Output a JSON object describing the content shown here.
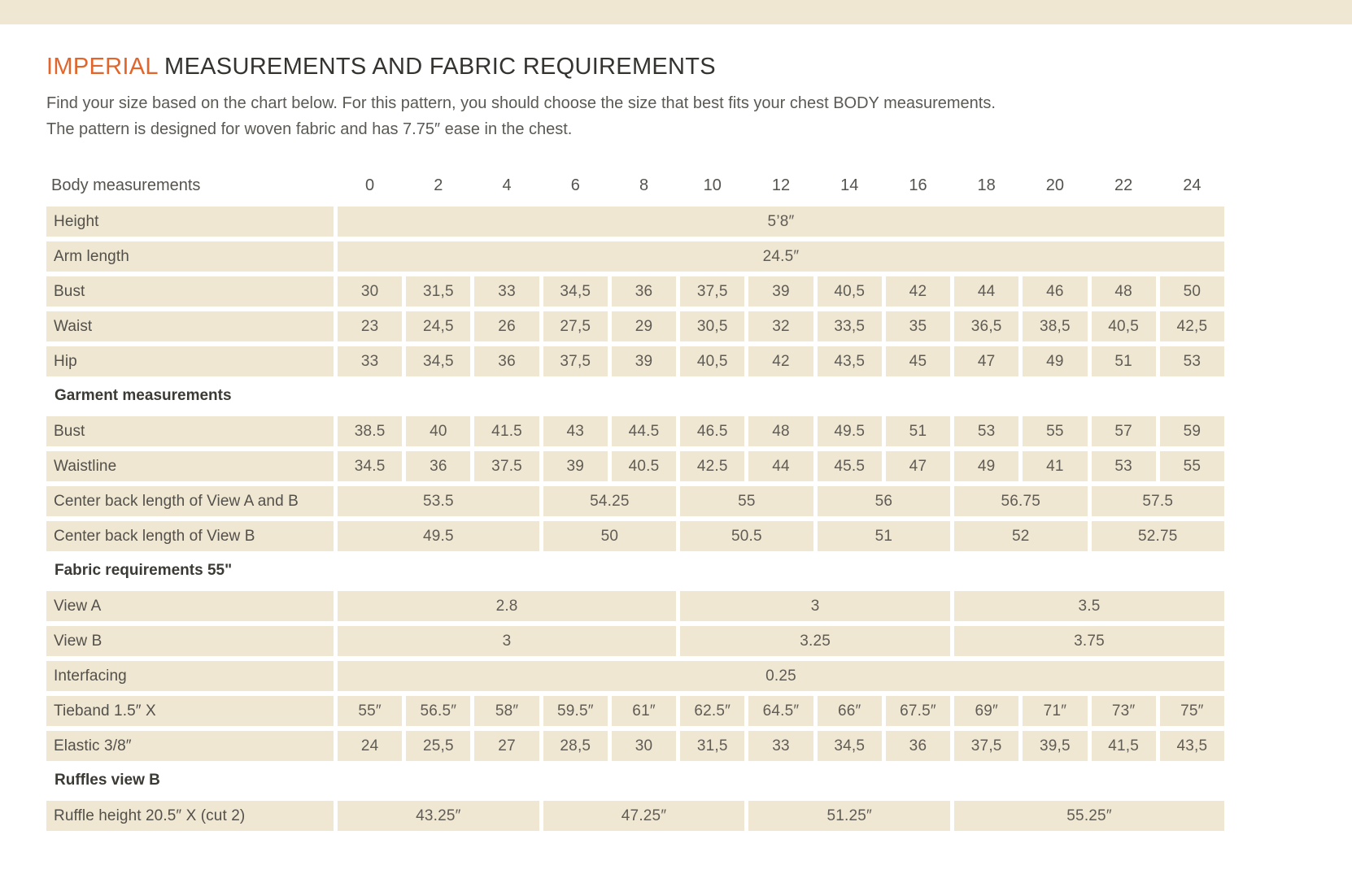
{
  "title": {
    "highlight": "IMPERIAL",
    "rest": " MEASUREMENTS AND FABRIC REQUIREMENTS"
  },
  "intro": {
    "line1": "Find your size based on the chart below. For this pattern, you should choose the size that best fits your chest BODY measurements.",
    "line2": "The pattern is designed for woven fabric and has 7.75″ ease in the chest."
  },
  "colors": {
    "accent_orange": "#e2662b",
    "cell_beige": "#f0e7d3",
    "label_text": "#52504a",
    "value_text": "#5f5c55"
  },
  "table": {
    "header_label": "Body measurements",
    "sizes": [
      "0",
      "2",
      "4",
      "6",
      "8",
      "10",
      "12",
      "14",
      "16",
      "18",
      "20",
      "22",
      "24"
    ],
    "rows": [
      {
        "type": "data",
        "label": "Height",
        "cells": [
          {
            "text": "5’8″",
            "span": 13
          }
        ]
      },
      {
        "type": "data",
        "label": "Arm length",
        "cells": [
          {
            "text": "24.5″",
            "span": 13
          }
        ]
      },
      {
        "type": "data",
        "label": "Bust",
        "cells": [
          {
            "text": "30",
            "span": 1
          },
          {
            "text": "31,5",
            "span": 1
          },
          {
            "text": "33",
            "span": 1
          },
          {
            "text": "34,5",
            "span": 1
          },
          {
            "text": "36",
            "span": 1
          },
          {
            "text": "37,5",
            "span": 1
          },
          {
            "text": "39",
            "span": 1
          },
          {
            "text": "40,5",
            "span": 1
          },
          {
            "text": "42",
            "span": 1
          },
          {
            "text": "44",
            "span": 1
          },
          {
            "text": "46",
            "span": 1
          },
          {
            "text": "48",
            "span": 1
          },
          {
            "text": "50",
            "span": 1
          }
        ]
      },
      {
        "type": "data",
        "label": "Waist",
        "cells": [
          {
            "text": "23",
            "span": 1
          },
          {
            "text": "24,5",
            "span": 1
          },
          {
            "text": "26",
            "span": 1
          },
          {
            "text": "27,5",
            "span": 1
          },
          {
            "text": "29",
            "span": 1
          },
          {
            "text": "30,5",
            "span": 1
          },
          {
            "text": "32",
            "span": 1
          },
          {
            "text": "33,5",
            "span": 1
          },
          {
            "text": "35",
            "span": 1
          },
          {
            "text": "36,5",
            "span": 1
          },
          {
            "text": "38,5",
            "span": 1
          },
          {
            "text": "40,5",
            "span": 1
          },
          {
            "text": "42,5",
            "span": 1
          }
        ]
      },
      {
        "type": "data",
        "label": "Hip",
        "cells": [
          {
            "text": "33",
            "span": 1
          },
          {
            "text": "34,5",
            "span": 1
          },
          {
            "text": "36",
            "span": 1
          },
          {
            "text": "37,5",
            "span": 1
          },
          {
            "text": "39",
            "span": 1
          },
          {
            "text": "40,5",
            "span": 1
          },
          {
            "text": "42",
            "span": 1
          },
          {
            "text": "43,5",
            "span": 1
          },
          {
            "text": "45",
            "span": 1
          },
          {
            "text": "47",
            "span": 1
          },
          {
            "text": "49",
            "span": 1
          },
          {
            "text": "51",
            "span": 1
          },
          {
            "text": "53",
            "span": 1
          }
        ]
      },
      {
        "type": "section",
        "label": "Garment measurements"
      },
      {
        "type": "data",
        "label": "Bust",
        "cells": [
          {
            "text": "38.5",
            "span": 1
          },
          {
            "text": "40",
            "span": 1
          },
          {
            "text": "41.5",
            "span": 1
          },
          {
            "text": "43",
            "span": 1
          },
          {
            "text": "44.5",
            "span": 1
          },
          {
            "text": "46.5",
            "span": 1
          },
          {
            "text": "48",
            "span": 1
          },
          {
            "text": "49.5",
            "span": 1
          },
          {
            "text": "51",
            "span": 1
          },
          {
            "text": "53",
            "span": 1
          },
          {
            "text": "55",
            "span": 1
          },
          {
            "text": "57",
            "span": 1
          },
          {
            "text": "59",
            "span": 1
          }
        ]
      },
      {
        "type": "data",
        "label": "Waistline",
        "cells": [
          {
            "text": "34.5",
            "span": 1
          },
          {
            "text": "36",
            "span": 1
          },
          {
            "text": "37.5",
            "span": 1
          },
          {
            "text": "39",
            "span": 1
          },
          {
            "text": "40.5",
            "span": 1
          },
          {
            "text": "42.5",
            "span": 1
          },
          {
            "text": "44",
            "span": 1
          },
          {
            "text": "45.5",
            "span": 1
          },
          {
            "text": "47",
            "span": 1
          },
          {
            "text": "49",
            "span": 1
          },
          {
            "text": "41",
            "span": 1
          },
          {
            "text": "53",
            "span": 1
          },
          {
            "text": "55",
            "span": 1
          }
        ]
      },
      {
        "type": "data",
        "label": "Center back length of View A and B",
        "cells": [
          {
            "text": "53.5",
            "span": 3
          },
          {
            "text": "54.25",
            "span": 2
          },
          {
            "text": "55",
            "span": 2
          },
          {
            "text": "56",
            "span": 2
          },
          {
            "text": "56.75",
            "span": 2
          },
          {
            "text": "57.5",
            "span": 2
          }
        ]
      },
      {
        "type": "data",
        "label": "Center back length of View  B",
        "cells": [
          {
            "text": "49.5",
            "span": 3
          },
          {
            "text": "50",
            "span": 2
          },
          {
            "text": "50.5",
            "span": 2
          },
          {
            "text": "51",
            "span": 2
          },
          {
            "text": "52",
            "span": 2
          },
          {
            "text": "52.75",
            "span": 2
          }
        ]
      },
      {
        "type": "section",
        "label": "Fabric requirements 55\""
      },
      {
        "type": "data",
        "label": "View A",
        "cells": [
          {
            "text": "2.8",
            "span": 5
          },
          {
            "text": "3",
            "span": 4
          },
          {
            "text": "3.5",
            "span": 4
          }
        ]
      },
      {
        "type": "data",
        "label": "View B",
        "cells": [
          {
            "text": "3",
            "span": 5
          },
          {
            "text": "3.25",
            "span": 4
          },
          {
            "text": "3.75",
            "span": 4
          }
        ]
      },
      {
        "type": "data",
        "label": "Interfacing",
        "cells": [
          {
            "text": "0.25",
            "span": 13
          }
        ]
      },
      {
        "type": "data",
        "label": "Tieband 1.5″ X",
        "cells": [
          {
            "text": "55″",
            "span": 1
          },
          {
            "text": "56.5″",
            "span": 1
          },
          {
            "text": "58″",
            "span": 1
          },
          {
            "text": "59.5″",
            "span": 1
          },
          {
            "text": "61″",
            "span": 1
          },
          {
            "text": "62.5″",
            "span": 1
          },
          {
            "text": "64.5″",
            "span": 1
          },
          {
            "text": "66″",
            "span": 1
          },
          {
            "text": "67.5″",
            "span": 1
          },
          {
            "text": "69″",
            "span": 1
          },
          {
            "text": "71″",
            "span": 1
          },
          {
            "text": "73″",
            "span": 1
          },
          {
            "text": "75″",
            "span": 1
          }
        ]
      },
      {
        "type": "data",
        "label": "Elastic 3/8″",
        "cells": [
          {
            "text": "24",
            "span": 1
          },
          {
            "text": "25,5",
            "span": 1
          },
          {
            "text": "27",
            "span": 1
          },
          {
            "text": "28,5",
            "span": 1
          },
          {
            "text": "30",
            "span": 1
          },
          {
            "text": "31,5",
            "span": 1
          },
          {
            "text": "33",
            "span": 1
          },
          {
            "text": "34,5",
            "span": 1
          },
          {
            "text": "36",
            "span": 1
          },
          {
            "text": "37,5",
            "span": 1
          },
          {
            "text": "39,5",
            "span": 1
          },
          {
            "text": "41,5",
            "span": 1
          },
          {
            "text": "43,5",
            "span": 1
          }
        ]
      },
      {
        "type": "section",
        "label": "Ruffles view B"
      },
      {
        "type": "data",
        "label": "Ruffle height 20.5″  X (cut 2)",
        "cells": [
          {
            "text": "43.25″",
            "span": 3
          },
          {
            "text": "47.25″",
            "span": 3
          },
          {
            "text": "51.25″",
            "span": 3
          },
          {
            "text": "55.25″",
            "span": 4
          }
        ]
      }
    ]
  }
}
